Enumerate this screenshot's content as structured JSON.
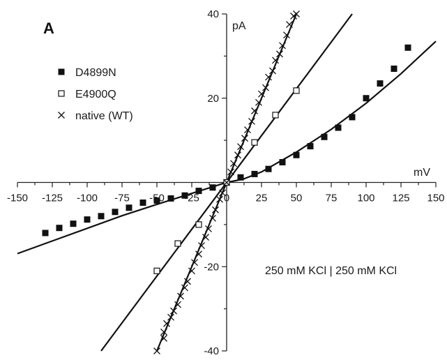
{
  "chart_data": {
    "type": "scatter",
    "panel_label": "A",
    "xlabel": "mV",
    "ylabel": "pA",
    "xlim": [
      -150,
      150
    ],
    "ylim": [
      -40,
      40
    ],
    "x_ticks": [
      -150,
      -125,
      -100,
      -75,
      -50,
      -25,
      0,
      25,
      50,
      75,
      100,
      125,
      150
    ],
    "y_ticks": [
      -40,
      -20,
      0,
      20,
      40
    ],
    "annotation": "250 mM KCl | 250 mM KCl",
    "legend_position": "top-left",
    "series": [
      {
        "name": "D4899N",
        "marker": "filled-square",
        "points": [
          [
            -130,
            -12
          ],
          [
            -120,
            -10.8
          ],
          [
            -110,
            -9.8
          ],
          [
            -100,
            -8.8
          ],
          [
            -90,
            -8
          ],
          [
            -80,
            -7
          ],
          [
            -70,
            -6
          ],
          [
            -60,
            -4.8
          ],
          [
            -50,
            -4.3
          ],
          [
            -40,
            -3.8
          ],
          [
            -30,
            -3.1
          ],
          [
            -20,
            -2
          ],
          [
            -10,
            -1.2
          ],
          [
            0,
            0
          ],
          [
            10,
            1.2
          ],
          [
            20,
            2
          ],
          [
            30,
            3.2
          ],
          [
            40,
            4.8
          ],
          [
            50,
            6.5
          ],
          [
            60,
            8.6
          ],
          [
            70,
            10.8
          ],
          [
            80,
            13
          ],
          [
            90,
            15.5
          ],
          [
            100,
            20
          ],
          [
            110,
            23.5
          ],
          [
            120,
            27
          ],
          [
            130,
            32
          ]
        ]
      },
      {
        "name": "E4900Q",
        "marker": "open-square",
        "points": [
          [
            -50,
            -21
          ],
          [
            -35,
            -14.5
          ],
          [
            -20,
            -10
          ],
          [
            0,
            0
          ],
          [
            20,
            9.5
          ],
          [
            35,
            16
          ],
          [
            50,
            21.8
          ]
        ]
      },
      {
        "name": "native (WT)",
        "marker": "cross",
        "points": [
          [
            -50,
            -41
          ],
          [
            -45,
            -37
          ],
          [
            -45,
            -35.5
          ],
          [
            -43,
            -33.5
          ],
          [
            -40,
            -32
          ],
          [
            -38,
            -30.5
          ],
          [
            -35,
            -29
          ],
          [
            -33,
            -27
          ],
          [
            -30,
            -25
          ],
          [
            -28,
            -23.5
          ],
          [
            -25,
            -21
          ],
          [
            -23,
            -19
          ],
          [
            -20,
            -17
          ],
          [
            -18,
            -15
          ],
          [
            -15,
            -13
          ],
          [
            -13,
            -11
          ],
          [
            -10,
            -8.5
          ],
          [
            -8,
            -6.5
          ],
          [
            -5,
            -4
          ],
          [
            -3,
            -2.5
          ],
          [
            0,
            0
          ],
          [
            3,
            2.5
          ],
          [
            5,
            4.5
          ],
          [
            8,
            6.5
          ],
          [
            10,
            8.5
          ],
          [
            13,
            10.5
          ],
          [
            15,
            12.5
          ],
          [
            18,
            14.5
          ],
          [
            20,
            17
          ],
          [
            23,
            19
          ],
          [
            25,
            21
          ],
          [
            28,
            22.5
          ],
          [
            30,
            25
          ],
          [
            33,
            26.5
          ],
          [
            35,
            29
          ],
          [
            38,
            30.5
          ],
          [
            40,
            32.5
          ],
          [
            43,
            35
          ],
          [
            45,
            37.5
          ],
          [
            48,
            39.5
          ],
          [
            50,
            41
          ]
        ]
      }
    ],
    "fit_lines": [
      {
        "points": [
          [
            -150,
            -16.9
          ],
          [
            -125,
            -13.9
          ],
          [
            -100,
            -10.9
          ],
          [
            -75,
            -7.9
          ],
          [
            -50,
            -5.2
          ],
          [
            -25,
            -2.6
          ],
          [
            0,
            0
          ],
          [
            12,
            0.8
          ],
          [
            25,
            2.5
          ],
          [
            50,
            7.2
          ],
          [
            75,
            12.6
          ],
          [
            100,
            18.8
          ],
          [
            125,
            25.8
          ],
          [
            150,
            33.5
          ]
        ]
      },
      {
        "points": [
          [
            -90,
            -40
          ],
          [
            90,
            40
          ]
        ]
      },
      {
        "points": [
          [
            -50,
            -41
          ],
          [
            50,
            41
          ]
        ]
      }
    ]
  }
}
